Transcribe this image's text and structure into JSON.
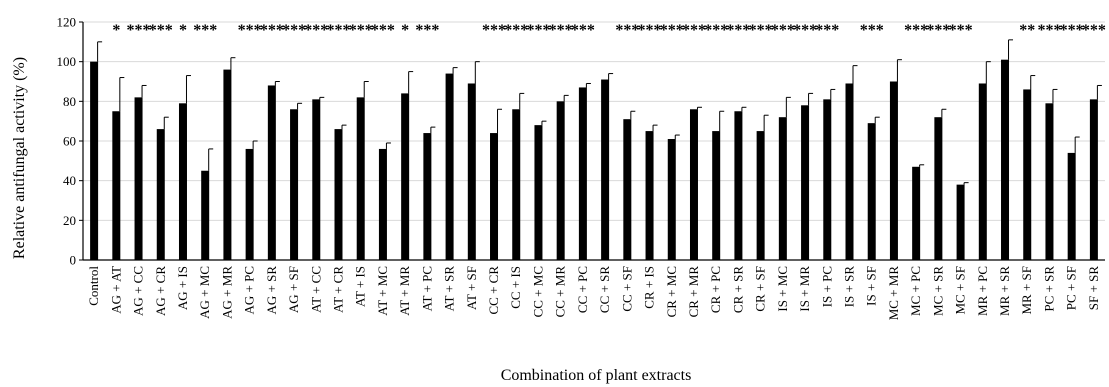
{
  "chart_data": {
    "type": "bar",
    "title": "",
    "xlabel": "Combination of plant extracts",
    "ylabel": "Relative antifungal activity (%)",
    "ylim": [
      0,
      120
    ],
    "yticks": [
      0,
      20,
      40,
      60,
      80,
      100,
      120
    ],
    "grid": "horizontal",
    "legend": "none",
    "bar_color": "#000000",
    "categories": [
      "Control",
      "AG + AT",
      "AG + CC",
      "AG + CR",
      "AG + IS",
      "AG + MC",
      "AG + MR",
      "AG + PC",
      "AG + SR",
      "AG + SF",
      "AT + CC",
      "AT + CR",
      "AT + IS",
      "AT + MC",
      "AT + MR",
      "AT + PC",
      "AT + SR",
      "AT + SF",
      "CC + CR",
      "CC + IS",
      "CC + MC",
      "CC + MR",
      "CC + PC",
      "CC + SR",
      "CC + SF",
      "CR + IS",
      "CR + MC",
      "CR + MR",
      "CR + PC",
      "CR + SR",
      "CR + SF",
      "IS + MC",
      "IS + MR",
      "IS + PC",
      "IS + SR",
      "IS + SF",
      "MC + MR",
      "MC + PC",
      "MC + SR",
      "MC + SF",
      "MR + PC",
      "MR + SR",
      "MR + SF",
      "PC + SR",
      "PC + SF",
      "SF + SR"
    ],
    "values": [
      100,
      75,
      82,
      66,
      79,
      45,
      96,
      56,
      88,
      76,
      81,
      66,
      82,
      56,
      84,
      64,
      94,
      89,
      64,
      76,
      68,
      80,
      87,
      91,
      71,
      65,
      61,
      76,
      65,
      75,
      65,
      72,
      78,
      81,
      89,
      69,
      90,
      47,
      72,
      38,
      89,
      101,
      86,
      79,
      54,
      81
    ],
    "errors": [
      10,
      17,
      6,
      6,
      14,
      11,
      6,
      4,
      2,
      3,
      1,
      2,
      8,
      3,
      11,
      3,
      3,
      11,
      12,
      8,
      2,
      3,
      2,
      3,
      4,
      3,
      2,
      1,
      10,
      2,
      8,
      10,
      6,
      5,
      9,
      3,
      11,
      1,
      4,
      1,
      11,
      10,
      7,
      7,
      8,
      7
    ],
    "significance": [
      "",
      "*",
      "***",
      "***",
      "*",
      "***",
      "",
      "***",
      "***",
      "***",
      "***",
      "***",
      "***",
      "***",
      "*",
      "***",
      "",
      "",
      "***",
      "***",
      "***",
      "***",
      "***",
      "",
      "***",
      "***",
      "***",
      "***",
      "***",
      "***",
      "***",
      "***",
      "***",
      "***",
      "",
      "***",
      "",
      "***",
      "***",
      "***",
      "",
      "",
      "**",
      "***",
      "***",
      "***"
    ]
  }
}
